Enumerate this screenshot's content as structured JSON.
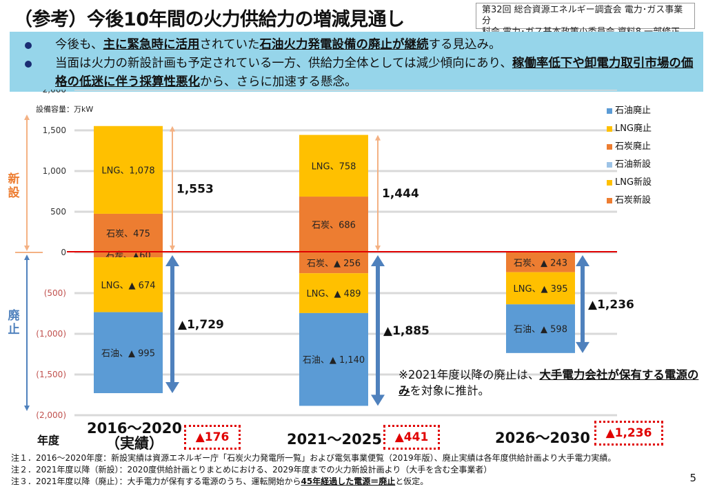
{
  "header": {
    "title": "（参考）今後10年間の火力供給力の増減見通し",
    "source_line1": "第32回 総合資源エネルギー調査会 電力･ガス事業分",
    "source_line2": "科会 電力･ガス基本政策小委員会 資料8 一部修正"
  },
  "bullets": [
    {
      "parts": [
        {
          "text": "今後も、",
          "bold": false
        },
        {
          "text": "主に緊急時に活用",
          "bold": true
        },
        {
          "text": "されていた",
          "bold": false
        },
        {
          "text": "石油火力発電設備の廃止が継続",
          "bold": true
        },
        {
          "text": "する見込み。",
          "bold": false
        }
      ]
    },
    {
      "parts": [
        {
          "text": "当面は火力の新設計画も予定されている一方、供給力全体としては減少傾向にあり、",
          "bold": false
        },
        {
          "text": "稼働率低下や卸電力取引市場の価格の低迷に伴う採算性悪化",
          "bold": true
        },
        {
          "text": "から、さらに加速する懸念。",
          "bold": false
        }
      ]
    }
  ],
  "side_labels": {
    "new": "新設",
    "retire": "廃止"
  },
  "year_axis_label": "年度",
  "chart_data": {
    "type": "bar",
    "stacked": true,
    "title": "",
    "ylabel": "設備容量：万kW",
    "xlabel": "年度",
    "ylim": [
      -2000,
      2000
    ],
    "yticks": [
      2000,
      1500,
      1000,
      500,
      0,
      -500,
      -1000,
      -1500,
      -2000
    ],
    "ytick_labels": [
      "2,000",
      "1,500",
      "1,000",
      "500",
      "0",
      "(500)",
      "(1,000)",
      "(1,500)",
      "(2,000)"
    ],
    "grid": true,
    "legend_position": "top-right",
    "categories": [
      "2016～2020（実績）",
      "2021～2025",
      "2026～2030"
    ],
    "category_labels": [
      [
        "2016～2020",
        "（実績）"
      ],
      [
        "2021～2025"
      ],
      [
        "2026～2030"
      ]
    ],
    "series": [
      {
        "name": "石油廃止",
        "color": "#5b9bd5",
        "values": [
          -995,
          -1140,
          -598
        ],
        "labels": [
          "石油、▲ 995",
          "石油、▲ 1,140",
          "石油、▲ 598"
        ]
      },
      {
        "name": "LNG廃止",
        "color": "#ffc000",
        "values": [
          -674,
          -489,
          -395
        ],
        "labels": [
          "LNG、▲ 674",
          "LNG、▲ 489",
          "LNG、▲ 395"
        ]
      },
      {
        "name": "石炭廃止",
        "color": "#ed7d31",
        "values": [
          -60,
          -256,
          -243
        ],
        "labels": [
          "石炭、▲60",
          "石炭、▲ 256",
          "石炭、▲ 243"
        ]
      },
      {
        "name": "石油新設",
        "color": "#9dc3e6",
        "values": [
          0,
          0,
          0
        ],
        "labels": [
          "",
          "",
          ""
        ]
      },
      {
        "name": "LNG新設",
        "color": "#ffc000",
        "values": [
          1078,
          758,
          0
        ],
        "labels": [
          "LNG、1,078",
          "LNG、758",
          ""
        ]
      },
      {
        "name": "石炭新設",
        "color": "#ed7d31",
        "values": [
          475,
          686,
          0
        ],
        "labels": [
          "石炭、475",
          "石炭、686",
          ""
        ]
      }
    ],
    "stack_order_negative": [
      "石炭廃止",
      "LNG廃止",
      "石油廃止"
    ],
    "stack_order_positive": [
      "石炭新設",
      "LNG新設"
    ],
    "new_totals": [
      1553,
      1444,
      null
    ],
    "new_total_labels": [
      "1,553",
      "1,444",
      ""
    ],
    "retire_totals": [
      -1729,
      -1885,
      -1236
    ],
    "retire_total_labels": [
      "▲1,729",
      "▲1,885",
      "▲1,236"
    ],
    "net_totals": [
      -176,
      -441,
      -1236
    ],
    "net_total_labels": [
      "▲176",
      "▲441",
      "▲1,236"
    ]
  },
  "note": {
    "parts": [
      {
        "text": "※2021年度以降の廃止は、",
        "bold": false
      },
      {
        "text": "大手電力会社が保有する電源のみ",
        "bold": true
      },
      {
        "text": "を対象に推計。",
        "bold": false
      }
    ]
  },
  "footnotes": [
    {
      "parts": [
        {
          "text": "注１．2016～2020年度：新設実績は資源エネルギー庁「石炭火力発電所一覧」および電気事業便覧（2019年版）、廃止実績は各年度供給計画より大手電力実績。",
          "bold": false
        }
      ]
    },
    {
      "parts": [
        {
          "text": "注２．2021年度以降（新設）：2020度供給計画とりまとめにおける、2029年度までの火力新設計画より（大手を含む全事業者）",
          "bold": false
        }
      ]
    },
    {
      "parts": [
        {
          "text": "注３．2021年度以降（廃止）：大手電力が保有する電源のうち、運転開始から",
          "bold": false
        },
        {
          "text": "45年経過した電源＝廃止",
          "bold": true
        },
        {
          "text": "と仮定。",
          "bold": false
        }
      ]
    }
  ],
  "page_number": "5",
  "colors": {
    "orange_arrow": "#f4b183",
    "blue_arrow": "#4f81bd",
    "zero_line": "#e00000",
    "net_total_red": "#e00000",
    "new_label": "#ed7d31",
    "retire_label": "#4f81bd",
    "negative_tick": "#c0504d"
  }
}
